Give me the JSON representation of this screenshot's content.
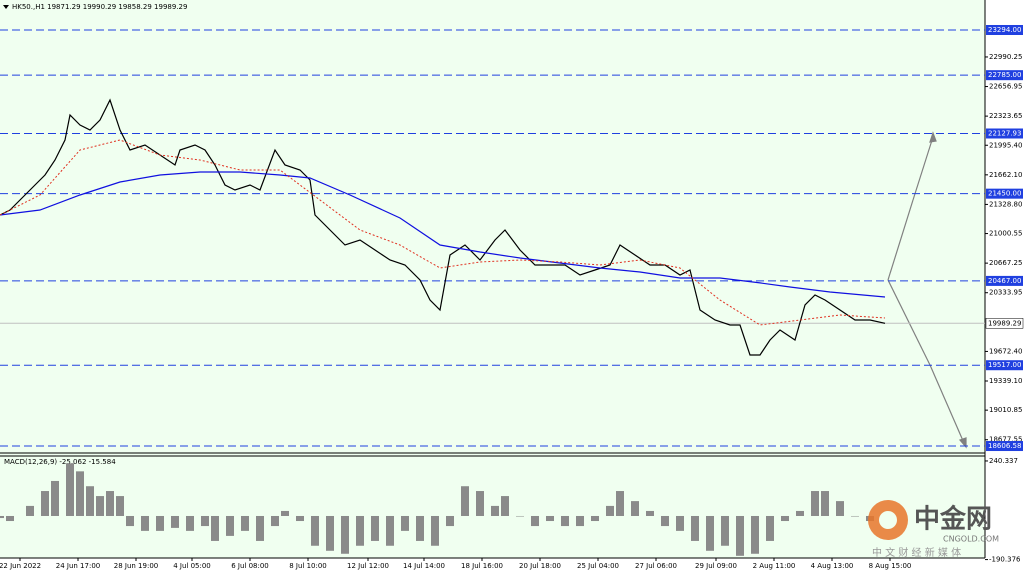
{
  "chart_data": {
    "type": "line",
    "header": "HK50.,H1  19871.29 19990.29 19858.29 19989.29",
    "xlim": [
      0,
      985
    ],
    "xticks": [
      {
        "value": 20,
        "label": "22 Jun 2022"
      },
      {
        "value": 78,
        "label": "24 Jun 17:00"
      },
      {
        "value": 136,
        "label": "28 Jun 19:00"
      },
      {
        "value": 192,
        "label": "4 Jul 05:00"
      },
      {
        "value": 250,
        "label": "6 Jul 08:00"
      },
      {
        "value": 308,
        "label": "8 Jul 10:00"
      },
      {
        "value": 368,
        "label": "12 Jul 12:00"
      },
      {
        "value": 424,
        "label": "14 Jul 14:00"
      },
      {
        "value": 482,
        "label": "18 Jul 16:00"
      },
      {
        "value": 540,
        "label": "20 Jul 18:00"
      },
      {
        "value": 598,
        "label": "25 Jul 04:00"
      },
      {
        "value": 656,
        "label": "27 Jul 06:00"
      },
      {
        "value": 716,
        "label": "29 Jul 09:00"
      },
      {
        "value": 774,
        "label": "2 Aug 11:00"
      },
      {
        "value": 832,
        "label": "4 Aug 13:00"
      },
      {
        "value": 890,
        "label": "8 Aug 15:00"
      }
    ],
    "ylim": [
      18528,
      23632
    ],
    "yticks": [
      22990.25,
      22656.95,
      22323.65,
      {
        "value": 21995.4,
        "label": "21995.40"
      },
      {
        "value": 21662.1,
        "label": "21662.10"
      },
      {
        "value": 21328.8,
        "label": "21328.80"
      },
      21000.55,
      20667.25,
      20333.95,
      {
        "value": 19672.4,
        "label": "19672.40"
      },
      {
        "value": 19339.1,
        "label": "19339.10"
      },
      19010.85,
      18677.55
    ],
    "levels": [
      {
        "value": 23294,
        "label": "23294.00"
      },
      {
        "value": 22785,
        "label": "22785.00"
      },
      22127.93,
      {
        "value": 21450,
        "label": "21450.00"
      },
      {
        "value": 20467,
        "label": "20467.00"
      },
      {
        "value": 19517,
        "label": "19517.00"
      },
      18606.58
    ],
    "level_color": "#2040e0",
    "last_price": 19989.29,
    "series": [
      {
        "color": "#000000",
        "x": [
          0,
          10,
          20,
          35,
          45,
          55,
          65,
          70,
          80,
          90,
          100,
          110,
          120,
          130,
          145,
          160,
          175,
          180,
          195,
          205,
          215,
          225,
          235,
          250,
          260,
          275,
          285,
          300,
          310,
          315,
          330,
          345,
          360,
          375,
          390,
          405,
          420,
          430,
          440,
          450,
          465,
          480,
          495,
          505,
          520,
          535,
          550,
          565,
          580,
          595,
          610,
          620,
          635,
          650,
          665,
          680,
          690,
          700,
          715,
          730,
          740,
          750,
          760,
          770,
          780,
          795,
          805,
          815,
          825,
          840,
          855,
          870,
          885
        ],
        "values": [
          21210,
          21266,
          21379,
          21548,
          21660,
          21829,
          22055,
          22336,
          22224,
          22167,
          22280,
          22505,
          22167,
          21942,
          21998,
          21886,
          21773,
          21942,
          21998,
          21942,
          21773,
          21548,
          21491,
          21548,
          21491,
          21942,
          21773,
          21717,
          21604,
          21210,
          21041,
          20872,
          20928,
          20815,
          20703,
          20646,
          20477,
          20252,
          20139,
          20759,
          20872,
          20703,
          20928,
          21041,
          20815,
          20646,
          20646,
          20646,
          20534,
          20590,
          20646,
          20872,
          20759,
          20646,
          20646,
          20534,
          20590,
          20139,
          20027,
          19970,
          19970,
          19632,
          19632,
          19801,
          19914,
          19801,
          20196,
          20308,
          20252,
          20139,
          20027,
          20027,
          19989
        ]
      },
      {
        "color": "#1010e0",
        "x": [
          0,
          40,
          80,
          120,
          160,
          200,
          240,
          280,
          310,
          350,
          400,
          440,
          480,
          520,
          560,
          600,
          640,
          680,
          720,
          760,
          790,
          830,
          885
        ],
        "values": [
          21210,
          21266,
          21435,
          21581,
          21660,
          21694,
          21694,
          21660,
          21626,
          21435,
          21176,
          20872,
          20793,
          20725,
          20669,
          20612,
          20567,
          20500,
          20500,
          20444,
          20398,
          20342,
          20286
        ]
      },
      {
        "color": "#e03020",
        "dashed": true,
        "x": [
          0,
          40,
          80,
          120,
          160,
          200,
          240,
          280,
          320,
          360,
          400,
          440,
          480,
          520,
          560,
          600,
          640,
          680,
          720,
          760,
          800,
          840,
          885
        ],
        "values": [
          21210,
          21435,
          21942,
          22055,
          21886,
          21829,
          21717,
          21717,
          21379,
          21041,
          20872,
          20612,
          20680,
          20703,
          20680,
          20646,
          20703,
          20612,
          20252,
          19970,
          20027,
          20083,
          20049
        ]
      }
    ],
    "macd": {
      "label": "MACD(12,26,9) -25.062 -15.584",
      "ylim": [
        -249,
        262
      ],
      "yticks": [
        240.337,
        -190.376
      ],
      "color": "#8a8a8a",
      "x": [
        0,
        10,
        30,
        45,
        55,
        70,
        80,
        90,
        100,
        110,
        120,
        130,
        145,
        160,
        175,
        190,
        205,
        215,
        230,
        245,
        260,
        275,
        285,
        300,
        315,
        330,
        345,
        360,
        375,
        390,
        405,
        420,
        435,
        450,
        465,
        480,
        495,
        505,
        520,
        535,
        550,
        565,
        580,
        595,
        610,
        620,
        635,
        650,
        665,
        680,
        695,
        710,
        725,
        740,
        755,
        770,
        785,
        800,
        815,
        825,
        840,
        855,
        870,
        885
      ],
      "values": [
        -9,
        -22,
        44,
        109,
        153,
        230,
        195,
        130,
        87,
        109,
        87,
        -44,
        -65,
        -65,
        -52,
        -65,
        -44,
        -109,
        -87,
        -65,
        -109,
        -44,
        22,
        -22,
        -130,
        -152,
        -165,
        -130,
        -109,
        -130,
        -65,
        -109,
        -130,
        -44,
        130,
        109,
        44,
        87,
        0,
        -44,
        -22,
        -44,
        -44,
        -22,
        44,
        109,
        65,
        22,
        -44,
        -65,
        -109,
        -152,
        -130,
        -174,
        -165,
        -109,
        -22,
        22,
        109,
        109,
        65,
        0,
        -22,
        -22
      ]
    },
    "watermark": {
      "brand": "中金网",
      "site": "CNGOLD.COM",
      "tagline": "中 文 财 经 新 媒 体"
    }
  }
}
